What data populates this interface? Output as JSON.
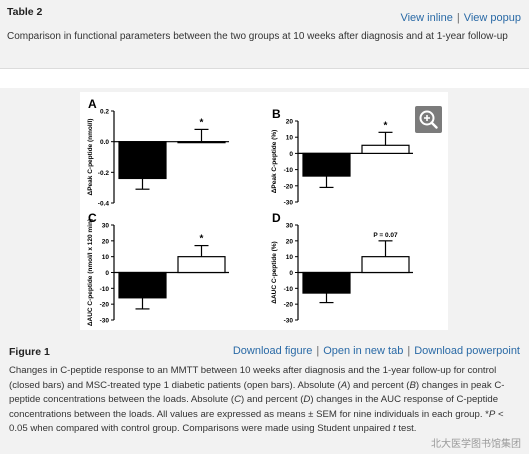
{
  "table": {
    "title": "Table 2",
    "view_inline": "View inline",
    "view_popup": "View popup",
    "caption": "Comparison in functional parameters between the two groups at 10 weeks after diagnosis and at 1-year follow-up"
  },
  "figure": {
    "title": "Figure 1",
    "download_figure": "Download figure",
    "open_new_tab": "Open in new tab",
    "download_powerpoint": "Download powerpoint",
    "caption_parts": [
      "Changes in C-peptide response to an MMTT between 10 weeks after diagnosis and the 1-year follow-up for control (closed bars) and MSC-treated type 1 diabetic patients (open bars). Absolute (",
      "A",
      ") and percent (",
      "B",
      ") changes in peak C-peptide concentrations between the loads. Absolute (",
      "C",
      ") and percent (",
      "D",
      ") changes in the AUC response of C-peptide concentrations between the loads. All values are expressed as means ± SEM for nine individuals in each group. *",
      "P",
      " < 0.05 when compared with control group. Comparisons were made using Student unpaired ",
      "t",
      " test."
    ],
    "zoom_icon": "zoom-in-icon"
  },
  "watermark": "北大医学图书馆集团",
  "colors": {
    "link": "#2a6aa6",
    "control_bar": "#000000",
    "treated_bar": "#ffffff"
  },
  "chart_data": [
    {
      "type": "bar",
      "panel": "A",
      "ylabel": "ΔPeak C-peptide (nmol/l)",
      "categories": [
        "Control",
        "MSC"
      ],
      "values": [
        -0.24,
        0.0
      ],
      "errors": [
        0.07,
        0.08
      ],
      "ylim": [
        -0.4,
        0.2
      ],
      "yticks": [
        -0.4,
        -0.2,
        0.0,
        0.2
      ],
      "ytick_labels": [
        "-0.4",
        "-0.2",
        "0.0",
        "0.2"
      ],
      "annotation": "*"
    },
    {
      "type": "bar",
      "panel": "B",
      "ylabel": "ΔPeak C-peptide (%)",
      "categories": [
        "Control",
        "MSC"
      ],
      "values": [
        -14,
        5
      ],
      "errors": [
        7,
        8
      ],
      "ylim": [
        -30,
        20
      ],
      "yticks": [
        -30,
        -20,
        -10,
        0,
        10,
        20
      ],
      "ytick_labels": [
        "-30",
        "-20",
        "-10",
        "0",
        "10",
        "20"
      ],
      "annotation": "*"
    },
    {
      "type": "bar",
      "panel": "C",
      "ylabel": "ΔAUC C-peptide (nmol/l x 120 min)",
      "categories": [
        "Control",
        "MSC"
      ],
      "values": [
        -16,
        10
      ],
      "errors": [
        7,
        7
      ],
      "ylim": [
        -30,
        30
      ],
      "yticks": [
        -30,
        -20,
        -10,
        0,
        10,
        20,
        30
      ],
      "ytick_labels": [
        "-30",
        "-20",
        "-10",
        "0",
        "10",
        "20",
        "30"
      ],
      "annotation": "*"
    },
    {
      "type": "bar",
      "panel": "D",
      "ylabel": "ΔAUC C-peptide (%)",
      "categories": [
        "Control",
        "MSC"
      ],
      "values": [
        -13,
        10
      ],
      "errors": [
        6,
        10
      ],
      "ylim": [
        -30,
        30
      ],
      "yticks": [
        -30,
        -20,
        -10,
        0,
        10,
        20,
        30
      ],
      "ytick_labels": [
        "-30",
        "-20",
        "-10",
        "0",
        "10",
        "20",
        "30"
      ],
      "annotation": "P = 0.07"
    }
  ]
}
